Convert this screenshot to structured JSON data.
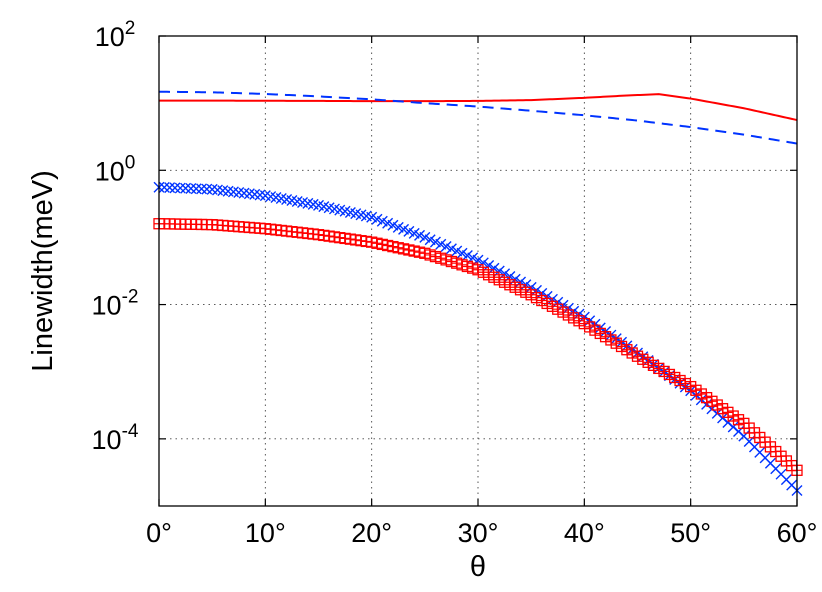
{
  "chart_data": {
    "type": "line",
    "title": "",
    "xlabel": "θ",
    "ylabel": "Linewidth(meV)",
    "xlim": [
      0,
      60
    ],
    "ylim": [
      1e-05,
      100
    ],
    "yscale": "log",
    "grid": true,
    "x_ticks": [
      0,
      10,
      20,
      30,
      40,
      50,
      60
    ],
    "x_tick_labels": [
      "0°",
      "10°",
      "20°",
      "30°",
      "40°",
      "50°",
      "60°"
    ],
    "y_ticks": [
      100,
      1,
      0.01,
      0.0001
    ],
    "y_tick_labels": [
      {
        "base": "10",
        "exp": "2"
      },
      {
        "base": "10",
        "exp": "0"
      },
      {
        "base": "10",
        "exp": "-2"
      },
      {
        "base": "10",
        "exp": "-4"
      }
    ],
    "series": [
      {
        "style": "solid",
        "color": "#ff0000",
        "x": [
          0,
          5,
          10,
          15,
          20,
          25,
          30,
          35,
          40,
          44,
          47,
          50,
          55,
          60
        ],
        "y": [
          10.9,
          10.9,
          10.85,
          10.8,
          10.7,
          10.7,
          10.8,
          11.1,
          12.0,
          13.0,
          13.6,
          11.7,
          8.4,
          5.6
        ]
      },
      {
        "style": "dashed",
        "color": "#0033ff",
        "x": [
          0,
          5,
          10,
          15,
          20,
          25,
          30,
          35,
          40,
          45,
          50,
          55,
          60
        ],
        "y": [
          14.8,
          14.5,
          13.7,
          12.6,
          11.4,
          10.0,
          8.9,
          7.7,
          6.6,
          5.5,
          4.4,
          3.4,
          2.5
        ]
      },
      {
        "style": "markers",
        "marker": "x",
        "color": "#0033ff",
        "x": [
          0,
          5,
          10,
          15,
          20,
          25,
          30,
          35,
          40,
          45,
          50,
          55,
          60
        ],
        "y": [
          0.56,
          0.52,
          0.42,
          0.3,
          0.2,
          0.1,
          0.046,
          0.018,
          0.0065,
          0.0019,
          0.00052,
          0.00011,
          1.7e-05
        ]
      },
      {
        "style": "markers",
        "marker": "square-plus",
        "color": "#ff0000",
        "x": [
          0,
          5,
          10,
          15,
          20,
          25,
          30,
          35,
          40,
          45,
          50,
          55,
          60
        ],
        "y": [
          0.16,
          0.155,
          0.135,
          0.11,
          0.085,
          0.058,
          0.033,
          0.014,
          0.0052,
          0.0017,
          0.0006,
          0.00017,
          3.4e-05
        ]
      }
    ]
  }
}
